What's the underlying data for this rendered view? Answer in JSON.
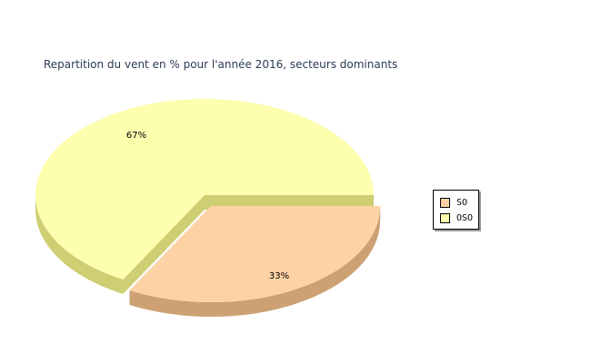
{
  "chart_data": {
    "type": "pie",
    "title": "Repartition du vent en % pour l'année 2016, secteurs dominants",
    "slices": [
      {
        "name": "SO",
        "value": 33,
        "label": "33%",
        "color": "#fdd3a6",
        "side_color": "#cda173",
        "exploded": true
      },
      {
        "name": "OSO",
        "value": 67,
        "label": "67%",
        "color": "#fdfeae",
        "side_color": "#cece73",
        "exploded": false
      }
    ],
    "legend": {
      "position": "right"
    }
  }
}
